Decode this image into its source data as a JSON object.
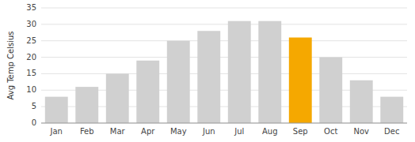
{
  "chart_data": {
    "type": "bar",
    "ylabel": "Avg Temp Celsius",
    "categories": [
      "Jan",
      "Feb",
      "Mar",
      "Apr",
      "May",
      "Jun",
      "Jul",
      "Aug",
      "Sep",
      "Oct",
      "Nov",
      "Dec"
    ],
    "values": [
      8,
      11,
      15,
      19,
      25,
      28,
      31,
      31,
      26,
      20,
      13,
      8
    ],
    "colors": [
      "#d0d0d0",
      "#d0d0d0",
      "#d0d0d0",
      "#d0d0d0",
      "#d0d0d0",
      "#d0d0d0",
      "#d0d0d0",
      "#d0d0d0",
      "#f5a800",
      "#d0d0d0",
      "#d0d0d0",
      "#d0d0d0"
    ],
    "ylim": [
      0,
      35
    ],
    "yticks": [
      0,
      5,
      10,
      15,
      20,
      25,
      30,
      35
    ],
    "grid": true
  }
}
